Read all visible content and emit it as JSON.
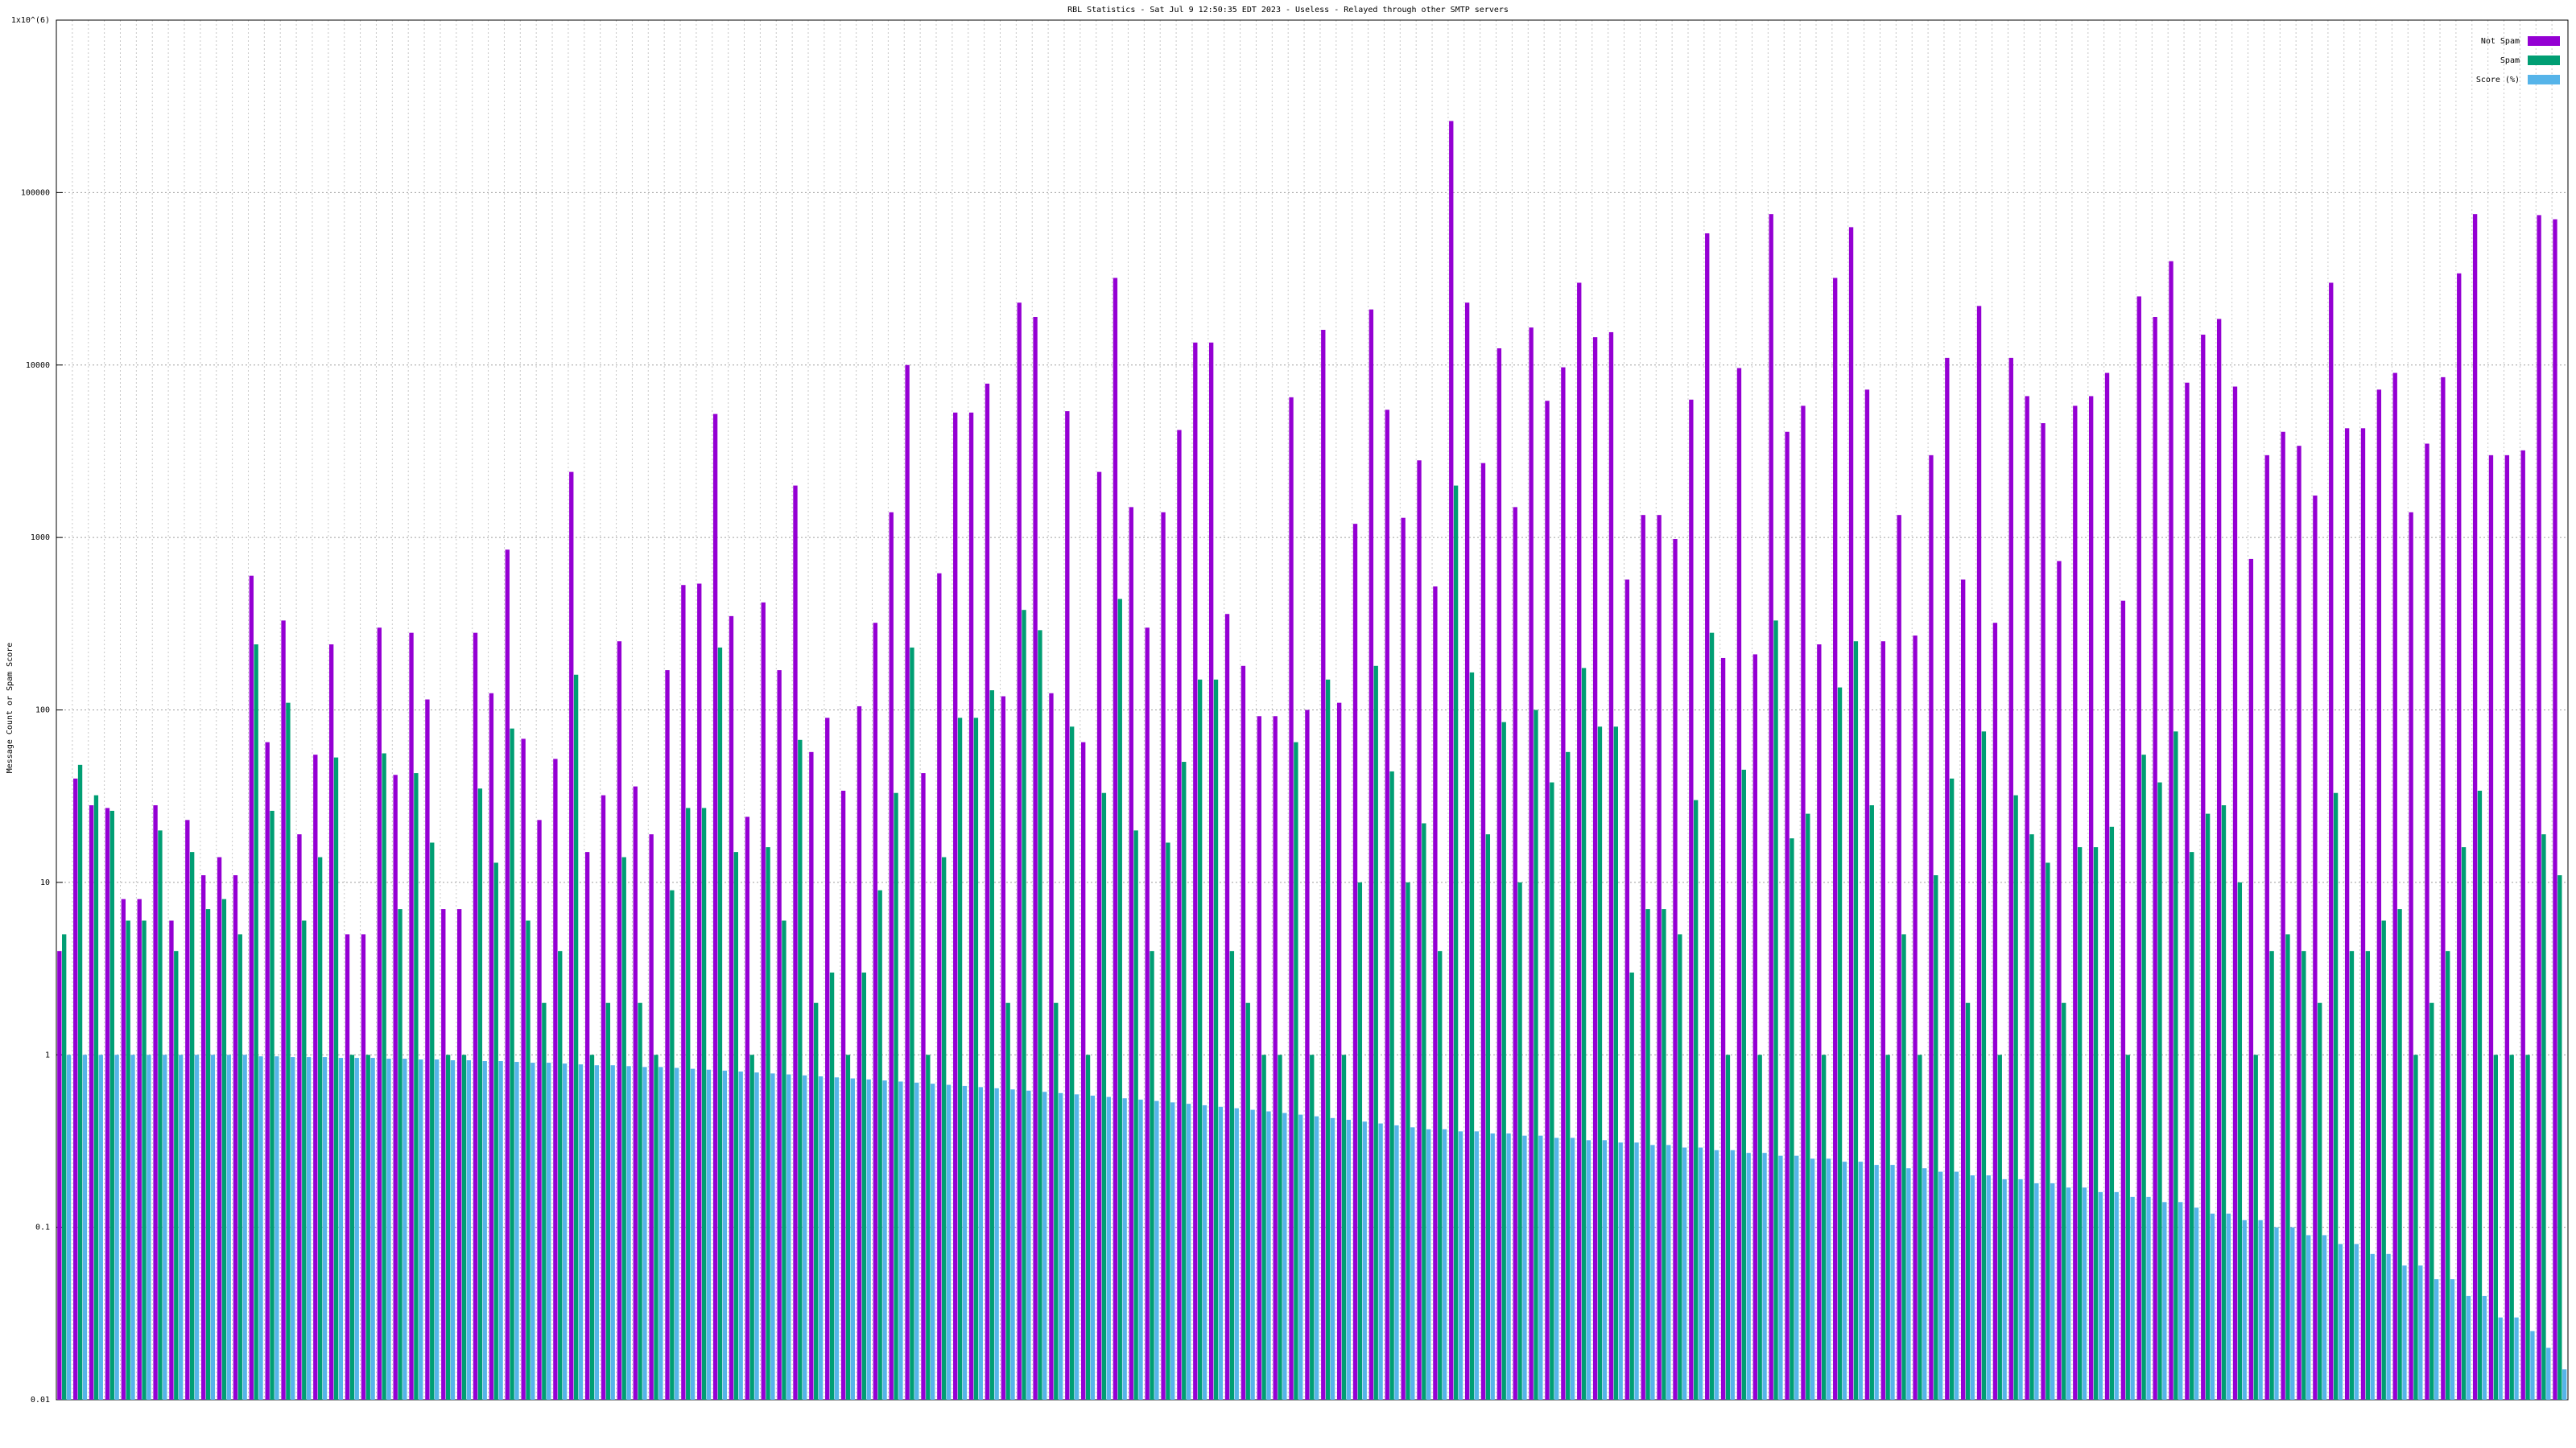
{
  "chart_data": {
    "type": "bar",
    "title": "RBL Statistics - Sat Jul  9 12:50:35 EDT 2023 - Useless - Relayed through other SMTP servers",
    "y_label": "Message Count or Spam Score",
    "log_scale": true,
    "grid": true,
    "legend": "top-right",
    "ylim": [
      0.01,
      1000000
    ],
    "yticks": [
      0.01,
      0.1,
      1,
      10,
      100,
      1000,
      10000,
      100000,
      {
        "value": 1000000,
        "label": "1x10^(6)"
      }
    ],
    "series": [
      {
        "name": "Not Spam",
        "color": "#9400d3",
        "values": [
          4,
          40,
          28,
          27,
          8,
          8,
          28,
          6,
          23,
          11,
          14,
          11,
          600,
          65,
          330,
          19,
          55,
          240,
          5,
          5,
          300,
          42,
          280,
          115,
          7,
          7,
          280,
          125,
          850,
          68,
          23,
          52,
          2400,
          15,
          32,
          250,
          36,
          19,
          170,
          530,
          540,
          5200,
          350,
          24,
          420,
          170,
          2000,
          57,
          90,
          34,
          105,
          320,
          1400,
          10000,
          43,
          620,
          5300,
          5300,
          7800,
          120,
          23000,
          19000,
          125,
          5400,
          65,
          2400,
          32000,
          1500,
          300,
          1400,
          4200,
          13500,
          13500,
          360,
          180,
          92,
          92,
          6500,
          100,
          16000,
          110,
          1200,
          21000,
          5500,
          1300,
          2800,
          520,
          260000,
          23000,
          2700,
          12500,
          1500,
          16500,
          6200,
          9700,
          30000,
          14500,
          15500,
          570,
          1350,
          1350,
          980,
          6300,
          58000,
          200,
          9600,
          210,
          75000,
          4100,
          5800,
          240,
          32000,
          63000,
          7200,
          250,
          1350,
          270,
          3000,
          11000,
          570,
          22000,
          320,
          11000,
          6600,
          4600,
          730,
          5800,
          6600,
          9000,
          430,
          25000,
          19000,
          40000,
          7900,
          15000,
          18500,
          7500,
          750,
          3000,
          4100,
          3400,
          1750,
          30000,
          4300,
          4300,
          7200,
          9000,
          1400,
          3500,
          8500,
          34000,
          75000,
          3000,
          3000,
          3200,
          74000,
          70000
        ]
      },
      {
        "name": "Spam",
        "color": "#009e73",
        "values": [
          5,
          48,
          32,
          26,
          6,
          6,
          20,
          4,
          15,
          7,
          8,
          5,
          240,
          26,
          110,
          6,
          14,
          53,
          1,
          1,
          56,
          7,
          43,
          17,
          1,
          1,
          35,
          13,
          78,
          6,
          2,
          4,
          160,
          1,
          2,
          14,
          2,
          1,
          9,
          27,
          27,
          230,
          15,
          1,
          16,
          6,
          67,
          2,
          3,
          1,
          3,
          9,
          33,
          230,
          1,
          14,
          90,
          90,
          130,
          2,
          380,
          290,
          2,
          80,
          1,
          33,
          440,
          20,
          4,
          17,
          50,
          150,
          150,
          4,
          2,
          1,
          1,
          65,
          1,
          150,
          1,
          10,
          180,
          44,
          10,
          22,
          4,
          2000,
          165,
          19,
          85,
          10,
          100,
          38,
          57,
          175,
          80,
          80,
          3,
          7,
          7,
          5,
          30,
          280,
          1,
          45,
          1,
          330,
          18,
          25,
          1,
          135,
          250,
          28,
          1,
          5,
          1,
          11,
          40,
          2,
          75,
          1,
          32,
          19,
          13,
          2,
          16,
          16,
          21,
          1,
          55,
          38,
          75,
          15,
          25,
          28,
          10,
          1,
          4,
          5,
          4,
          2,
          33,
          4,
          4,
          6,
          7,
          1,
          2,
          4,
          16,
          34,
          1,
          1,
          1,
          19,
          11
        ]
      },
      {
        "name": "Score (%)",
        "color": "#56b4e9",
        "values": [
          1,
          1,
          1,
          1,
          1,
          1,
          1,
          1,
          1,
          1,
          1,
          1,
          0.98,
          0.98,
          0.97,
          0.97,
          0.97,
          0.96,
          0.96,
          0.96,
          0.95,
          0.95,
          0.94,
          0.94,
          0.93,
          0.93,
          0.92,
          0.92,
          0.91,
          0.9,
          0.9,
          0.89,
          0.88,
          0.87,
          0.87,
          0.86,
          0.85,
          0.85,
          0.84,
          0.83,
          0.82,
          0.81,
          0.8,
          0.79,
          0.78,
          0.77,
          0.76,
          0.75,
          0.74,
          0.73,
          0.72,
          0.71,
          0.7,
          0.69,
          0.68,
          0.67,
          0.66,
          0.65,
          0.64,
          0.63,
          0.62,
          0.61,
          0.6,
          0.59,
          0.58,
          0.57,
          0.56,
          0.55,
          0.54,
          0.53,
          0.52,
          0.51,
          0.5,
          0.49,
          0.48,
          0.47,
          0.46,
          0.45,
          0.44,
          0.43,
          0.42,
          0.41,
          0.4,
          0.39,
          0.38,
          0.37,
          0.37,
          0.36,
          0.36,
          0.35,
          0.35,
          0.34,
          0.34,
          0.33,
          0.33,
          0.32,
          0.32,
          0.31,
          0.31,
          0.3,
          0.3,
          0.29,
          0.29,
          0.28,
          0.28,
          0.27,
          0.27,
          0.26,
          0.26,
          0.25,
          0.25,
          0.24,
          0.24,
          0.23,
          0.23,
          0.22,
          0.22,
          0.21,
          0.21,
          0.2,
          0.2,
          0.19,
          0.19,
          0.18,
          0.18,
          0.17,
          0.17,
          0.16,
          0.16,
          0.15,
          0.15,
          0.14,
          0.14,
          0.13,
          0.12,
          0.12,
          0.11,
          0.11,
          0.1,
          0.1,
          0.09,
          0.09,
          0.08,
          0.08,
          0.07,
          0.07,
          0.06,
          0.06,
          0.05,
          0.05,
          0.04,
          0.04,
          0.03,
          0.03,
          0.025,
          0.02,
          0.015
        ]
      }
    ]
  }
}
